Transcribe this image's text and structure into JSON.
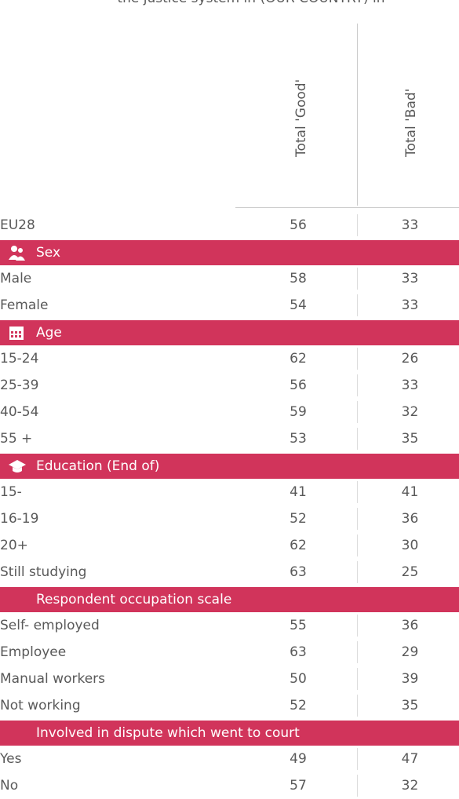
{
  "header": {
    "title": "the justice system in (OUR COUNTRY) in"
  },
  "table": {
    "columns": [
      "Total 'Good'",
      "Total 'Bad'"
    ],
    "total": {
      "label": "EU28",
      "values": [
        56,
        33
      ]
    },
    "groups": [
      {
        "title": "Sex",
        "rows": [
          {
            "label": "Male",
            "values": [
              58,
              33
            ]
          },
          {
            "label": "Female",
            "values": [
              54,
              33
            ]
          }
        ]
      },
      {
        "title": "Age",
        "rows": [
          {
            "label": "15-24",
            "values": [
              62,
              26
            ]
          },
          {
            "label": "25-39",
            "values": [
              56,
              33
            ]
          },
          {
            "label": "40-54",
            "values": [
              59,
              32
            ]
          },
          {
            "label": "55 +",
            "values": [
              53,
              35
            ]
          }
        ]
      },
      {
        "title": "Education (End of)",
        "rows": [
          {
            "label": "15-",
            "values": [
              41,
              41
            ]
          },
          {
            "label": "16-19",
            "values": [
              52,
              36
            ]
          },
          {
            "label": "20+",
            "values": [
              62,
              30
            ]
          },
          {
            "label": "Still studying",
            "values": [
              63,
              25
            ]
          }
        ]
      },
      {
        "title": "Respondent occupation scale",
        "rows": [
          {
            "label": "Self- employed",
            "values": [
              55,
              36
            ]
          },
          {
            "label": "Employee",
            "values": [
              63,
              29
            ]
          },
          {
            "label": "Manual workers",
            "values": [
              50,
              39
            ]
          },
          {
            "label": "Not working",
            "values": [
              52,
              35
            ]
          }
        ]
      },
      {
        "title": "Involved in dispute which went to court",
        "rows": [
          {
            "label": "Yes",
            "values": [
              49,
              47
            ]
          },
          {
            "label": "No",
            "values": [
              57,
              32
            ]
          }
        ]
      }
    ]
  }
}
